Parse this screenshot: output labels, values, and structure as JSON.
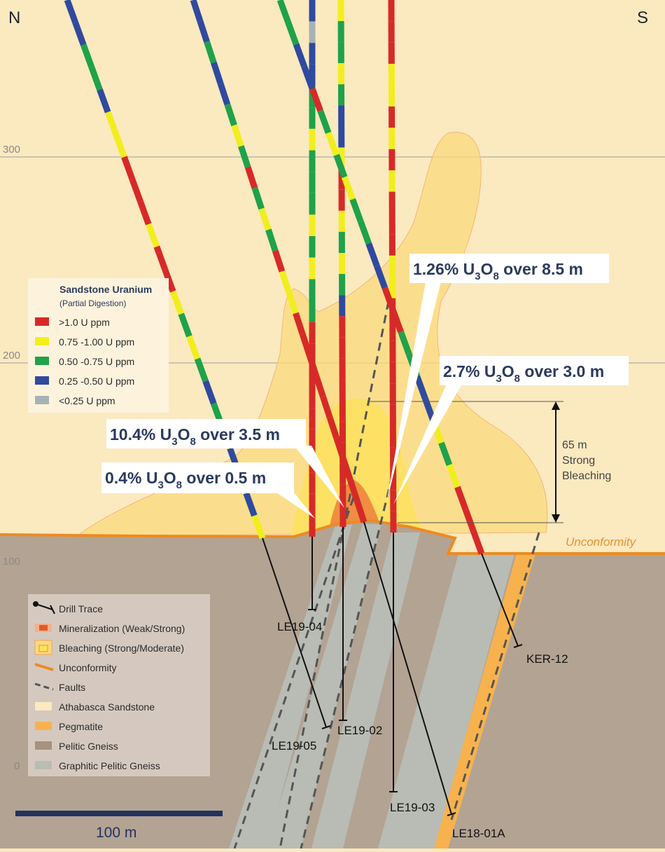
{
  "compass": {
    "north": "N",
    "south": "S"
  },
  "elevations": [
    "300",
    "200",
    "100",
    "0"
  ],
  "unconformity_label": "Unconformity",
  "bleaching_note": {
    "value": "65 m",
    "line2": "Strong",
    "line3": "Bleaching"
  },
  "scale_bar": {
    "label": "100 m"
  },
  "colors": {
    "sandstone": "#fbe9c0",
    "pelitic_gneiss": "#b3a393",
    "graphitic_gneiss": "#b8bcb5",
    "pegmatite": "#f7b24e",
    "unconformity": "#ec8b22",
    "bleach_moderate": "#fbd97c",
    "bleach_strong": "#fde15a",
    "u_gt_1": "#d62a28",
    "u_075_100": "#f1ee1e",
    "u_050_075": "#1fa24a",
    "u_025_050": "#2f4a9e",
    "u_lt_025": "#a6b3b4"
  },
  "callouts": [
    {
      "id": "c1",
      "prefix": "1.26% U",
      "sub": "3",
      "mid": "O",
      "sub2": "8",
      "suffix": " over 8.5 m"
    },
    {
      "id": "c2",
      "prefix": "2.7% U",
      "sub": "3",
      "mid": "O",
      "sub2": "8",
      "suffix": " over 3.0 m"
    },
    {
      "id": "c3",
      "prefix": "10.4% U",
      "sub": "3",
      "mid": "O",
      "sub2": "8",
      "suffix": " over 3.5 m"
    },
    {
      "id": "c4",
      "prefix": "0.4% U",
      "sub": "3",
      "mid": "O",
      "sub2": "8",
      "suffix": " over 0.5 m"
    }
  ],
  "drill_holes": [
    "LE19-04",
    "LE19-05",
    "LE19-02",
    "LE19-03",
    "LE18-01A",
    "KER-12"
  ],
  "uranium_legend": {
    "title": "Sandstone Uranium",
    "subtitle": "(Partial Digestion)",
    "items": [
      ">1.0 U ppm",
      "0.75 -1.00 U ppm",
      "0.50 -0.75 U ppm",
      "0.25 -0.50 U ppm",
      "<0.25 U ppm"
    ]
  },
  "geology_legend": {
    "items": [
      "Drill Trace",
      "Mineralization (Weak/Strong)",
      "Bleaching (Strong/Moderate)",
      "Unconformity",
      "Faults",
      "Athabasca Sandstone",
      "Pegmatite",
      "Pelitic Gneiss",
      "Graphitic Pelitic Gneiss"
    ]
  }
}
